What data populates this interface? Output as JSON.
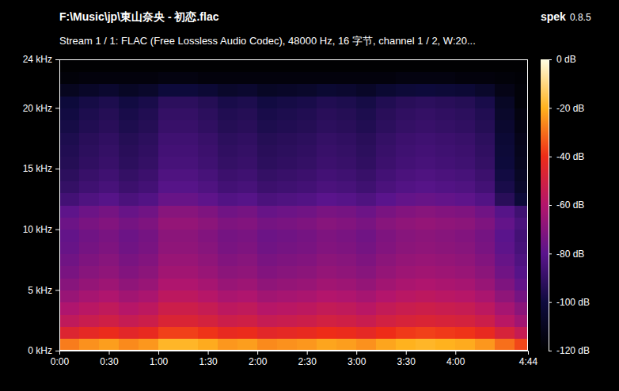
{
  "chart_data": {
    "type": "heatmap",
    "title": "F:\\Music\\jp\\東山奈央 - 初恋.flac",
    "subtitle": "Stream 1 / 1: FLAC (Free Lossless Audio Codec), 48000 Hz, 16 字节, channel 1 / 2, W:20...",
    "software": "spek",
    "version": "0.8.5",
    "xlim": [
      0,
      284
    ],
    "ylim": [
      0,
      24
    ],
    "xticks": [
      {
        "value": 0,
        "label": "0:00"
      },
      {
        "value": 30,
        "label": "0:30"
      },
      {
        "value": 60,
        "label": "1:00"
      },
      {
        "value": 90,
        "label": "1:30"
      },
      {
        "value": 120,
        "label": "2:00"
      },
      {
        "value": 150,
        "label": "2:30"
      },
      {
        "value": 180,
        "label": "3:00"
      },
      {
        "value": 210,
        "label": "3:30"
      },
      {
        "value": 240,
        "label": "4:00"
      },
      {
        "value": 284,
        "label": "4:44"
      }
    ],
    "yticks": [
      {
        "value": 0,
        "label": "0 kHz"
      },
      {
        "value": 5,
        "label": "5 kHz"
      },
      {
        "value": 10,
        "label": "10 kHz"
      },
      {
        "value": 15,
        "label": "15 kHz"
      },
      {
        "value": 20,
        "label": "20 kHz"
      },
      {
        "value": 24,
        "label": "24 kHz"
      }
    ],
    "x_bins": [
      0,
      12,
      24,
      36,
      48,
      60,
      72,
      84,
      96,
      108,
      120,
      132,
      144,
      156,
      168,
      180,
      192,
      204,
      216,
      228,
      240,
      252,
      264,
      276,
      284
    ],
    "y_bins": [
      0,
      1,
      2,
      3,
      4,
      5,
      6,
      7,
      8,
      9,
      10,
      11,
      12,
      13,
      14,
      15,
      16,
      17,
      18,
      19,
      20,
      21,
      22,
      23,
      24
    ],
    "cells": [
      [
        -28,
        -25,
        -23,
        -26,
        -24,
        -19,
        -19,
        -21,
        -24,
        -23,
        -26,
        -25,
        -24,
        -22,
        -23,
        -25,
        -22,
        -20,
        -19,
        -20,
        -21,
        -24,
        -30,
        -36
      ],
      [
        -46,
        -43,
        -41,
        -44,
        -42,
        -37,
        -37,
        -39,
        -42,
        -41,
        -44,
        -43,
        -42,
        -40,
        -41,
        -43,
        -40,
        -38,
        -37,
        -38,
        -39,
        -42,
        -48,
        -54
      ],
      [
        -56,
        -53,
        -51,
        -54,
        -52,
        -47,
        -47,
        -49,
        -52,
        -51,
        -54,
        -53,
        -52,
        -50,
        -51,
        -53,
        -50,
        -48,
        -47,
        -48,
        -49,
        -52,
        -58,
        -64
      ],
      [
        -61,
        -58,
        -56,
        -59,
        -57,
        -52,
        -52,
        -54,
        -57,
        -56,
        -59,
        -58,
        -57,
        -55,
        -56,
        -58,
        -55,
        -53,
        -52,
        -53,
        -54,
        -57,
        -63,
        -69
      ],
      [
        -66,
        -63,
        -61,
        -64,
        -62,
        -57,
        -57,
        -59,
        -62,
        -61,
        -64,
        -63,
        -62,
        -60,
        -61,
        -63,
        -60,
        -58,
        -57,
        -58,
        -59,
        -62,
        -68,
        -74
      ],
      [
        -70,
        -67,
        -65,
        -68,
        -66,
        -61,
        -61,
        -63,
        -66,
        -65,
        -68,
        -67,
        -66,
        -64,
        -65,
        -67,
        -64,
        -62,
        -61,
        -62,
        -63,
        -66,
        -72,
        -78
      ],
      [
        -73,
        -70,
        -68,
        -71,
        -69,
        -64,
        -64,
        -66,
        -69,
        -68,
        -71,
        -70,
        -69,
        -67,
        -68,
        -70,
        -67,
        -65,
        -64,
        -65,
        -66,
        -69,
        -75,
        -81
      ],
      [
        -75,
        -72,
        -70,
        -73,
        -71,
        -66,
        -66,
        -68,
        -71,
        -70,
        -73,
        -72,
        -71,
        -69,
        -70,
        -72,
        -69,
        -67,
        -66,
        -67,
        -68,
        -71,
        -77,
        -83
      ],
      [
        -77,
        -74,
        -72,
        -75,
        -73,
        -68,
        -68,
        -70,
        -73,
        -72,
        -75,
        -74,
        -73,
        -71,
        -72,
        -74,
        -71,
        -69,
        -68,
        -69,
        -70,
        -73,
        -79,
        -85
      ],
      [
        -78,
        -75,
        -73,
        -76,
        -74,
        -69,
        -69,
        -71,
        -74,
        -73,
        -76,
        -75,
        -74,
        -72,
        -73,
        -75,
        -72,
        -70,
        -69,
        -70,
        -71,
        -74,
        -80,
        -86
      ],
      [
        -76,
        -73,
        -71,
        -74,
        -72,
        -67,
        -67,
        -69,
        -72,
        -71,
        -74,
        -73,
        -72,
        -70,
        -71,
        -73,
        -70,
        -68,
        -67,
        -68,
        -69,
        -72,
        -78,
        -84
      ],
      [
        -79,
        -76,
        -74,
        -77,
        -75,
        -70,
        -70,
        -72,
        -75,
        -74,
        -77,
        -76,
        -75,
        -73,
        -74,
        -76,
        -73,
        -71,
        -70,
        -71,
        -72,
        -75,
        -81,
        -87
      ],
      [
        -86,
        -83,
        -81,
        -84,
        -82,
        -77,
        -77,
        -79,
        -82,
        -81,
        -84,
        -83,
        -82,
        -80,
        -81,
        -83,
        -80,
        -78,
        -77,
        -78,
        -79,
        -82,
        -93,
        -102
      ],
      [
        -90,
        -87,
        -85,
        -88,
        -86,
        -81,
        -81,
        -83,
        -86,
        -85,
        -88,
        -87,
        -86,
        -84,
        -85,
        -87,
        -84,
        -82,
        -81,
        -82,
        -83,
        -86,
        -97,
        -106
      ],
      [
        -92,
        -89,
        -87,
        -90,
        -88,
        -83,
        -83,
        -85,
        -88,
        -87,
        -90,
        -89,
        -88,
        -86,
        -87,
        -89,
        -86,
        -84,
        -83,
        -84,
        -85,
        -88,
        -99,
        -108
      ],
      [
        -94,
        -91,
        -89,
        -92,
        -90,
        -85,
        -85,
        -87,
        -90,
        -89,
        -92,
        -91,
        -90,
        -88,
        -89,
        -91,
        -88,
        -86,
        -85,
        -86,
        -87,
        -90,
        -101,
        -110
      ],
      [
        -95,
        -92,
        -90,
        -93,
        -91,
        -86,
        -86,
        -88,
        -91,
        -90,
        -93,
        -92,
        -91,
        -89,
        -90,
        -92,
        -89,
        -87,
        -86,
        -87,
        -88,
        -91,
        -102,
        -111
      ],
      [
        -96,
        -93,
        -91,
        -94,
        -92,
        -87,
        -87,
        -89,
        -92,
        -91,
        -94,
        -93,
        -92,
        -90,
        -91,
        -93,
        -90,
        -88,
        -87,
        -88,
        -89,
        -92,
        -103,
        -112
      ],
      [
        -98,
        -95,
        -93,
        -96,
        -94,
        -89,
        -89,
        -91,
        -94,
        -93,
        -96,
        -95,
        -94,
        -92,
        -93,
        -95,
        -92,
        -90,
        -89,
        -90,
        -91,
        -94,
        -105,
        -114
      ],
      [
        -99,
        -96,
        -94,
        -97,
        -95,
        -90,
        -90,
        -92,
        -95,
        -94,
        -97,
        -96,
        -95,
        -93,
        -94,
        -96,
        -93,
        -91,
        -90,
        -91,
        -92,
        -95,
        -106,
        -115
      ],
      [
        -101,
        -98,
        -96,
        -99,
        -97,
        -92,
        -92,
        -94,
        -97,
        -96,
        -99,
        -98,
        -97,
        -95,
        -96,
        -98,
        -95,
        -93,
        -92,
        -93,
        -94,
        -97,
        -108,
        -117
      ],
      [
        -110,
        -107,
        -105,
        -108,
        -106,
        -101,
        -101,
        -103,
        -106,
        -105,
        -108,
        -107,
        -106,
        -104,
        -105,
        -107,
        -104,
        -102,
        -101,
        -102,
        -103,
        -106,
        -113,
        -117
      ],
      [
        -117,
        -116,
        -116,
        -116,
        -116,
        -115,
        -115,
        -116,
        -116,
        -116,
        -116,
        -116,
        -116,
        -116,
        -116,
        -116,
        -116,
        -115,
        -115,
        -115,
        -116,
        -116,
        -117,
        -118
      ],
      [
        -119,
        -119,
        -119,
        -119,
        -119,
        -119,
        -119,
        -119,
        -119,
        -119,
        -119,
        -119,
        -119,
        -119,
        -119,
        -119,
        -119,
        -119,
        -119,
        -119,
        -119,
        -119,
        -119,
        -119
      ]
    ],
    "colorbar": {
      "range": [
        -120,
        0
      ],
      "ticks": [
        {
          "value": 0,
          "label": "0 dB"
        },
        {
          "value": -20,
          "label": "-20 dB"
        },
        {
          "value": -40,
          "label": "-40 dB"
        },
        {
          "value": -60,
          "label": "-60 dB"
        },
        {
          "value": -80,
          "label": "-80 dB"
        },
        {
          "value": -100,
          "label": "-100 dB"
        },
        {
          "value": -120,
          "label": "-120 dB"
        }
      ]
    }
  }
}
